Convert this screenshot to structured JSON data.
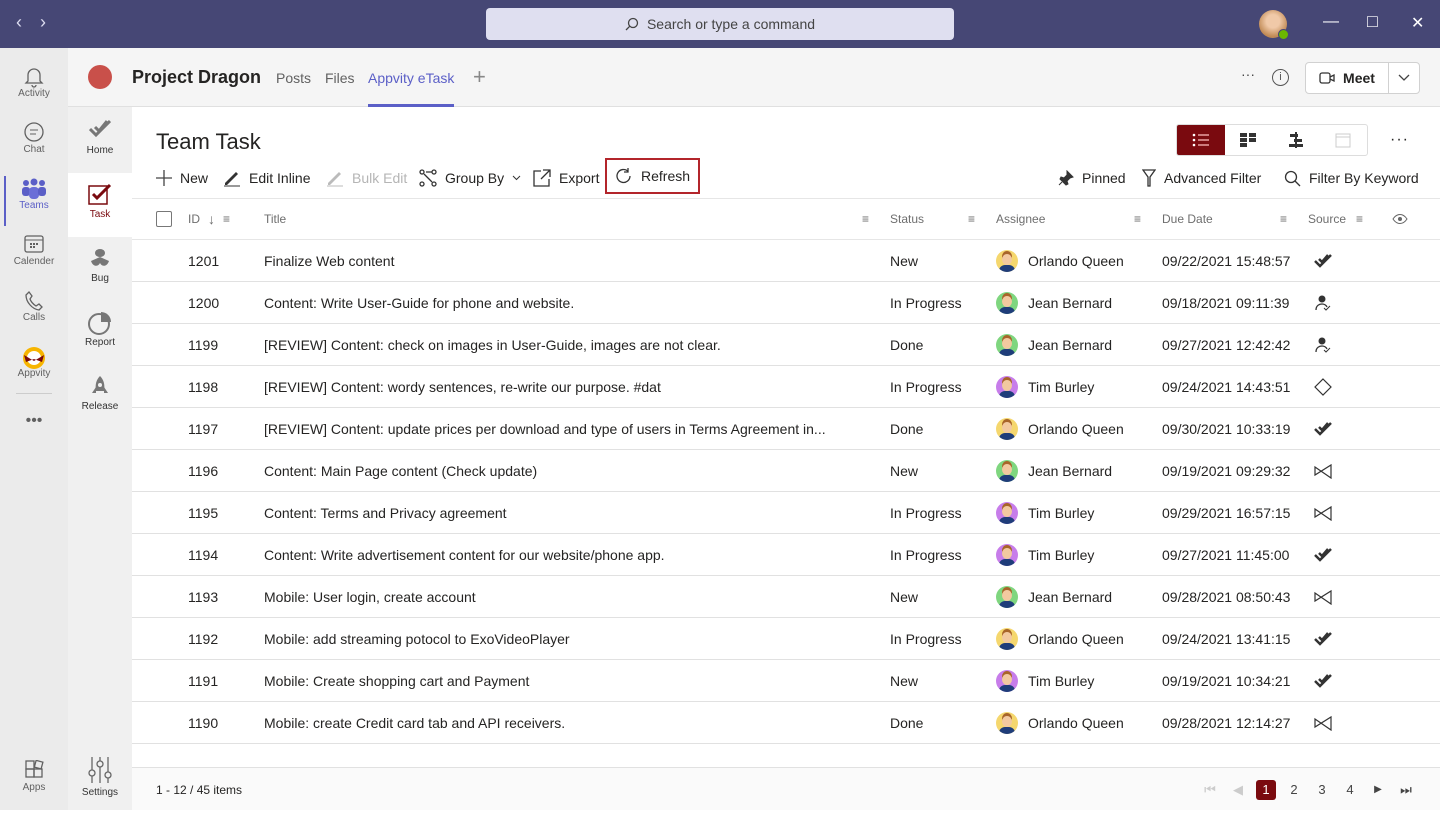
{
  "titlebar": {
    "search_placeholder": "Search or type a command"
  },
  "rail": [
    {
      "label": "Activity",
      "icon": "bell-icon"
    },
    {
      "label": "Chat",
      "icon": "chat-icon"
    },
    {
      "label": "Teams",
      "icon": "teams-icon",
      "active": true
    },
    {
      "label": "Calender",
      "icon": "calendar-icon"
    },
    {
      "label": "Calls",
      "icon": "phone-icon"
    },
    {
      "label": "Appvity",
      "icon": "appvity-icon"
    },
    {
      "label": "Apps",
      "icon": "apps-icon"
    }
  ],
  "header": {
    "team": "Project Dragon",
    "tabs": [
      "Posts",
      "Files",
      "Appvity eTask"
    ],
    "active_tab": "Appvity eTask",
    "meet": "Meet"
  },
  "subnav": [
    {
      "label": "Home"
    },
    {
      "label": "Task",
      "active": true
    },
    {
      "label": "Bug"
    },
    {
      "label": "Report"
    },
    {
      "label": "Release"
    },
    {
      "label": "Settings"
    }
  ],
  "main": {
    "title": "Team Task",
    "toolbar": {
      "new": "New",
      "edit_inline": "Edit Inline",
      "bulk_edit": "Bulk Edit",
      "group_by": "Group By",
      "export": "Export",
      "refresh": "Refresh",
      "pinned": "Pinned",
      "advanced_filter": "Advanced Filter",
      "filter_keyword": "Filter By Keyword"
    },
    "columns": {
      "id": "ID",
      "title": "Title",
      "status": "Status",
      "assignee": "Assignee",
      "due": "Due Date",
      "source": "Source"
    },
    "rows": [
      {
        "id": "1201",
        "title": "Finalize Web content",
        "status": "New",
        "assignee": "Orlando Queen",
        "due": "09/22/2021 15:48:57",
        "source": "etask"
      },
      {
        "id": "1200",
        "title": "Content: Write User-Guide for phone and website.",
        "status": "In Progress",
        "assignee": "Jean Bernard",
        "due": "09/18/2021 09:11:39",
        "source": "person"
      },
      {
        "id": "1199",
        "title": "[REVIEW] Content: check on images in User-Guide, images are not clear.",
        "status": "Done",
        "assignee": "Jean Bernard",
        "due": "09/27/2021 12:42:42",
        "source": "person"
      },
      {
        "id": "1198",
        "title": "[REVIEW] Content: wordy sentences, re-write our purpose. #dat",
        "status": "In Progress",
        "assignee": "Tim Burley",
        "due": "09/24/2021 14:43:51",
        "source": "diamond"
      },
      {
        "id": "1197",
        "title": "[REVIEW] Content: update prices per download and type of users in Terms Agreement in...",
        "status": "Done",
        "assignee": "Orlando Queen",
        "due": "09/30/2021 10:33:19",
        "source": "etask"
      },
      {
        "id": "1196",
        "title": "Content: Main Page content (Check update)",
        "status": "New",
        "assignee": "Jean Bernard",
        "due": "09/19/2021 09:29:32",
        "source": "bowtie"
      },
      {
        "id": "1195",
        "title": "Content: Terms and Privacy agreement",
        "status": "In Progress",
        "assignee": "Tim Burley",
        "due": "09/29/2021 16:57:15",
        "source": "bowtie"
      },
      {
        "id": "1194",
        "title": "Content: Write advertisement content for our website/phone app.",
        "status": "In Progress",
        "assignee": "Tim Burley",
        "due": "09/27/2021 11:45:00",
        "source": "etask"
      },
      {
        "id": "1193",
        "title": "Mobile: User login, create account",
        "status": "New",
        "assignee": "Jean Bernard",
        "due": "09/28/2021 08:50:43",
        "source": "bowtie"
      },
      {
        "id": "1192",
        "title": "Mobile: add streaming potocol to ExoVideoPlayer",
        "status": "In Progress",
        "assignee": "Orlando Queen",
        "due": "09/24/2021 13:41:15",
        "source": "etask"
      },
      {
        "id": "1191",
        "title": "Mobile: Create shopping cart and Payment",
        "status": "New",
        "assignee": "Tim Burley",
        "due": "09/19/2021 10:34:21",
        "source": "etask"
      },
      {
        "id": "1190",
        "title": "Mobile: create Credit card tab and API receivers.",
        "status": "Done",
        "assignee": "Orlando Queen",
        "due": "09/28/2021 12:14:27",
        "source": "bowtie"
      }
    ],
    "avatar_colors": {
      "Orlando Queen": "#f5d76e",
      "Jean Bernard": "#7fd67f",
      "Tim Burley": "#c77dea"
    },
    "footer": {
      "range": "1 - 12 / 45 items",
      "pages": [
        "1",
        "2",
        "3",
        "4"
      ],
      "current_page": "1"
    }
  },
  "colors": {
    "titlebar": "#464775",
    "accent": "#5b5fc7",
    "brand": "#7a0a0f"
  }
}
